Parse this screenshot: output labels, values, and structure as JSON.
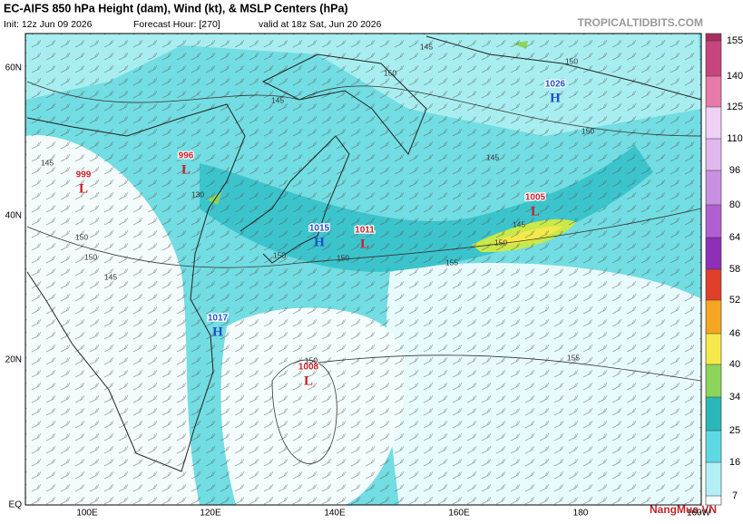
{
  "header": {
    "title": "EC-AIFS 850 hPa Height (dam), Wind (kt), & MSLP Centers (hPa)",
    "init": "Init: 12z Jun 09 2026",
    "forecast_hour": "Forecast Hour: [270]",
    "valid": "valid at 18z Sat, Jun 20 2026",
    "source": "TROPICALTIDBITS.COM"
  },
  "axes": {
    "lat_labels": [
      "60N",
      "40N",
      "20N",
      "EQ"
    ],
    "lon_labels": [
      "100E",
      "120E",
      "140E",
      "160E",
      "180",
      "160W"
    ]
  },
  "pressure_centers": [
    {
      "value": "999",
      "type": "L"
    },
    {
      "value": "996",
      "type": "L"
    },
    {
      "value": "1015",
      "type": "H"
    },
    {
      "value": "1011",
      "type": "L"
    },
    {
      "value": "1017",
      "type": "H"
    },
    {
      "value": "1008",
      "type": "L"
    },
    {
      "value": "1005",
      "type": "L"
    },
    {
      "value": "1026",
      "type": "H"
    }
  ],
  "contour_labels": [
    "145",
    "150",
    "150",
    "145",
    "150",
    "145",
    "145",
    "130",
    "150",
    "150",
    "145",
    "150",
    "150",
    "155",
    "150",
    "145",
    "150",
    "155"
  ],
  "colorbar": {
    "ticks": [
      155,
      140,
      125,
      110,
      96,
      80,
      64,
      58,
      52,
      46,
      40,
      34,
      25,
      16,
      7
    ]
  },
  "watermark": "NangMua.VN"
}
